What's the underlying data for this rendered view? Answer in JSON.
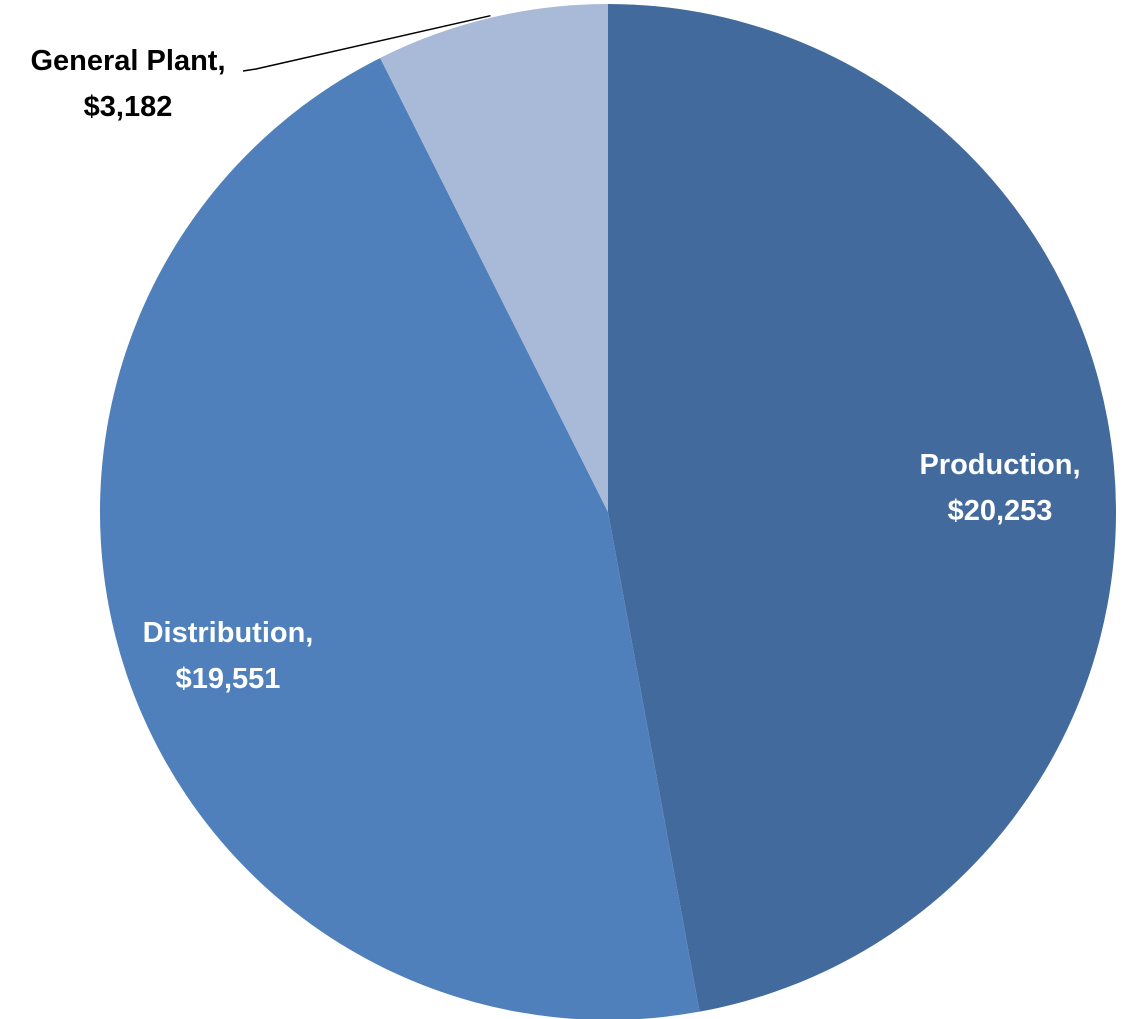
{
  "chart_data": {
    "type": "pie",
    "title": "",
    "start_angle_deg": 0,
    "direction": "clockwise",
    "slices": [
      {
        "category": "Production",
        "value": 20253,
        "label_line1": "Production,",
        "label_line2": "$20,253",
        "color": "#426A9C",
        "label_color": "#FFFFFF",
        "label_position": "inside"
      },
      {
        "category": "Distribution",
        "value": 19551,
        "label_line1": "Distribution,",
        "label_line2": "$19,551",
        "color": "#4F80BC",
        "label_color": "#FFFFFF",
        "label_position": "inside"
      },
      {
        "category": "General Plant",
        "value": 3182,
        "label_line1": "General Plant,",
        "label_line2": "$3,182",
        "color": "#A9B9D8",
        "label_color": "#000000",
        "label_position": "outside-with-leader-line"
      }
    ]
  }
}
